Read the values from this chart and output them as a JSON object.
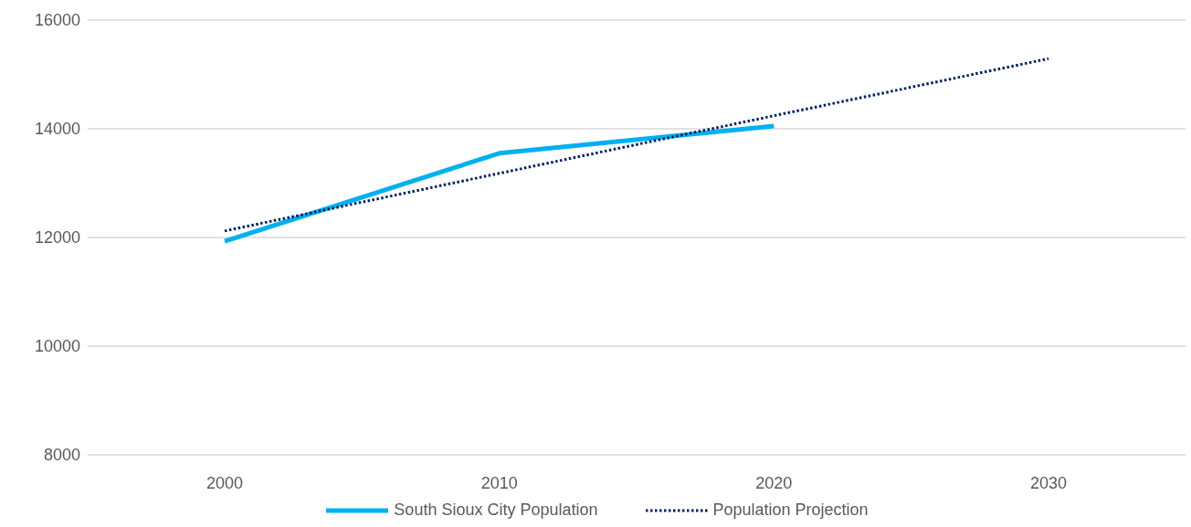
{
  "chart_data": {
    "type": "line",
    "categories": [
      "2000",
      "2010",
      "2020",
      "2030"
    ],
    "series": [
      {
        "name": "South Sioux City Population",
        "color": "#00b0f0",
        "values": [
          11930,
          13550,
          14050,
          null
        ],
        "line_style": "solid"
      },
      {
        "name": "Population Projection",
        "color": "#002060",
        "values": [
          12120,
          13180,
          14240,
          15290
        ],
        "line_style": "dotted"
      }
    ],
    "ylim": [
      8000,
      16000
    ],
    "yticks": [
      8000,
      10000,
      12000,
      14000,
      16000
    ],
    "grid": "y",
    "legend": "bottom",
    "marker": "none"
  }
}
